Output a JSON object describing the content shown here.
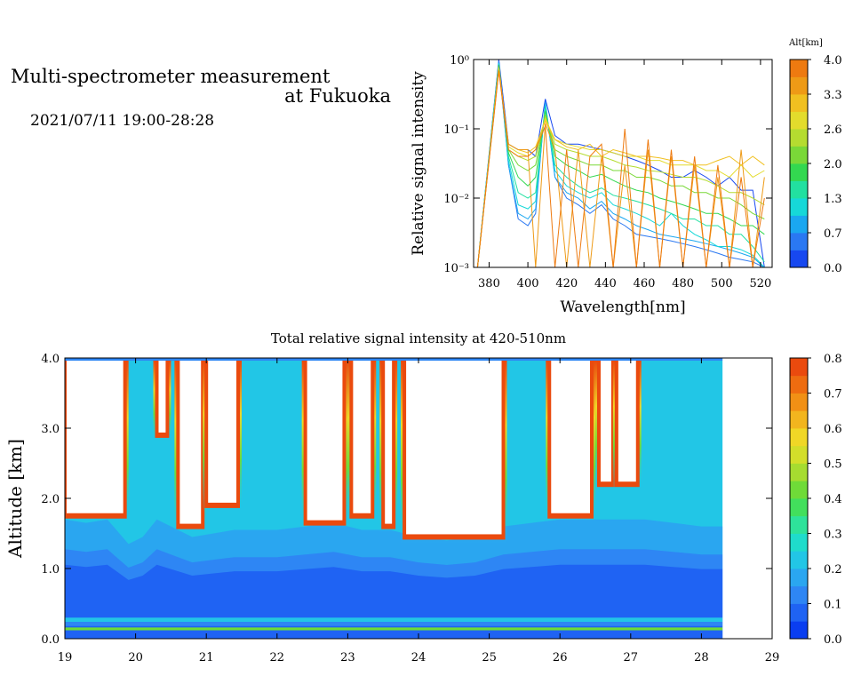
{
  "header": {
    "title_line1": "Multi-spectrometer measurement",
    "title_line2": "at Fukuoka",
    "datetime": "2021/07/11 19:00-28:28"
  },
  "chart_data": [
    {
      "type": "line",
      "xlabel": "Wavelength[nm]",
      "ylabel": "Relative signal intensity",
      "xlim": [
        372,
        526
      ],
      "xticks": [
        380,
        400,
        420,
        440,
        460,
        480,
        500,
        520
      ],
      "ylim": [
        0.001,
        1
      ],
      "yscale": "log",
      "yticks": [
        "10⁰",
        "10⁻¹",
        "10⁻²",
        "10⁻³"
      ],
      "legend": {
        "title": "Alt[km]",
        "ticks": [
          "4.0",
          "3.3",
          "2.6",
          "2.0",
          "1.3",
          "0.7",
          "0.0"
        ],
        "colors": [
          "#1748f0",
          "#2a78f2",
          "#1aa7f0",
          "#16d8d8",
          "#22e0a0",
          "#33d850",
          "#7ad838",
          "#b5dc30",
          "#e3dc2c",
          "#f0c020",
          "#ee9a16",
          "#ee7a10"
        ]
      },
      "x": [
        374,
        385,
        390,
        395,
        400,
        404,
        409,
        414,
        420,
        426,
        432,
        438,
        444,
        450,
        456,
        462,
        468,
        474,
        480,
        486,
        492,
        498,
        504,
        510,
        516,
        522
      ],
      "series": [
        {
          "color": "#1748f0",
          "values": [
            0.001,
            1,
            0.06,
            0.05,
            0.05,
            0.04,
            0.27,
            0.08,
            0.06,
            0.06,
            0.055,
            0.05,
            0.045,
            0.04,
            0.035,
            0.03,
            0.025,
            0.02,
            0.02,
            0.025,
            0.02,
            0.015,
            0.02,
            0.013,
            0.013,
            0.001
          ]
        },
        {
          "color": "#2a78f2",
          "values": [
            0.001,
            0.95,
            0.03,
            0.005,
            0.004,
            0.006,
            0.25,
            0.02,
            0.01,
            0.008,
            0.006,
            0.008,
            0.005,
            0.004,
            0.003,
            0.0028,
            0.0026,
            0.0024,
            0.0022,
            0.002,
            0.0018,
            0.0016,
            0.0014,
            0.0013,
            0.0012,
            0.001
          ]
        },
        {
          "color": "#1aa7f0",
          "values": [
            0.001,
            0.9,
            0.03,
            0.006,
            0.005,
            0.007,
            0.24,
            0.02,
            0.012,
            0.01,
            0.007,
            0.009,
            0.006,
            0.005,
            0.004,
            0.0035,
            0.003,
            0.0028,
            0.0026,
            0.0024,
            0.0022,
            0.002,
            0.0018,
            0.0016,
            0.0014,
            0.001
          ]
        },
        {
          "color": "#16d8d8",
          "values": [
            0.001,
            0.88,
            0.035,
            0.008,
            0.007,
            0.009,
            0.22,
            0.025,
            0.015,
            0.012,
            0.01,
            0.012,
            0.008,
            0.007,
            0.006,
            0.005,
            0.004,
            0.006,
            0.004,
            0.003,
            0.0025,
            0.002,
            0.002,
            0.0018,
            0.0015,
            0.001
          ]
        },
        {
          "color": "#22e0a0",
          "values": [
            0.001,
            0.85,
            0.04,
            0.012,
            0.01,
            0.012,
            0.2,
            0.03,
            0.02,
            0.015,
            0.012,
            0.014,
            0.011,
            0.01,
            0.009,
            0.008,
            0.007,
            0.006,
            0.005,
            0.005,
            0.004,
            0.004,
            0.003,
            0.003,
            0.002,
            0.0012
          ]
        },
        {
          "color": "#33d850",
          "values": [
            0.001,
            0.83,
            0.045,
            0.02,
            0.015,
            0.02,
            0.18,
            0.04,
            0.03,
            0.025,
            0.02,
            0.022,
            0.018,
            0.015,
            0.013,
            0.012,
            0.01,
            0.009,
            0.008,
            0.007,
            0.006,
            0.006,
            0.005,
            0.004,
            0.004,
            0.003
          ]
        },
        {
          "color": "#7ad838",
          "values": [
            0.001,
            0.8,
            0.05,
            0.03,
            0.025,
            0.03,
            0.16,
            0.05,
            0.04,
            0.035,
            0.03,
            0.03,
            0.025,
            0.025,
            0.02,
            0.02,
            0.018,
            0.015,
            0.015,
            0.012,
            0.012,
            0.01,
            0.01,
            0.008,
            0.006,
            0.005
          ]
        },
        {
          "color": "#b5dc30",
          "values": [
            0.001,
            0.78,
            0.05,
            0.04,
            0.035,
            0.04,
            0.15,
            0.06,
            0.05,
            0.045,
            0.04,
            0.04,
            0.035,
            0.03,
            0.028,
            0.025,
            0.024,
            0.022,
            0.02,
            0.02,
            0.018,
            0.015,
            0.012,
            0.012,
            0.01,
            0.008
          ]
        },
        {
          "color": "#e3dc2c",
          "values": [
            0.001,
            0.75,
            0.055,
            0.045,
            0.04,
            0.05,
            0.14,
            0.07,
            0.06,
            0.055,
            0.05,
            0.05,
            0.045,
            0.04,
            0.04,
            0.035,
            0.035,
            0.03,
            0.03,
            0.03,
            0.025,
            0.025,
            0.02,
            0.03,
            0.02,
            0.025
          ]
        },
        {
          "color": "#f0c020",
          "values": [
            0.001,
            0.72,
            0.06,
            0.05,
            0.045,
            0.055,
            0.13,
            0.07,
            0.055,
            0.05,
            0.06,
            0.04,
            0.05,
            0.045,
            0.04,
            0.04,
            0.038,
            0.035,
            0.035,
            0.03,
            0.03,
            0.035,
            0.04,
            0.03,
            0.04,
            0.03
          ]
        },
        {
          "color": "#ee9a16",
          "values": [
            0.001,
            0.7,
            0.06,
            0.05,
            0.05,
            0.001,
            0.12,
            0.05,
            0.001,
            0.05,
            0.001,
            0.04,
            0.001,
            0.03,
            0.001,
            0.05,
            0.001,
            0.04,
            0.001,
            0.03,
            0.001,
            0.02,
            0.001,
            0.05,
            0.001,
            0.02
          ]
        },
        {
          "color": "#ee7a10",
          "values": [
            0.001,
            0.68,
            0.05,
            0.04,
            0.04,
            0.05,
            0.11,
            0.001,
            0.05,
            0.001,
            0.04,
            0.06,
            0.001,
            0.1,
            0.001,
            0.07,
            0.001,
            0.05,
            0.001,
            0.04,
            0.001,
            0.03,
            0.001,
            0.02,
            0.001,
            0.01
          ]
        }
      ]
    },
    {
      "type": "heatmap",
      "title": "Total relative signal intensity at 420-510nm",
      "ylabel": "Altitude [km]",
      "xlim": [
        19,
        29
      ],
      "xticks": [
        "19",
        "20",
        "21",
        "22",
        "23",
        "24",
        "25",
        "26",
        "27",
        "28",
        "29"
      ],
      "ylim": [
        0,
        4
      ],
      "yticks": [
        "0.0",
        "1.0",
        "2.0",
        "3.0",
        "4.0"
      ],
      "x_data_end": 28.3,
      "colorbar": {
        "ticks": [
          "0.8",
          "0.7",
          "0.6",
          "0.5",
          "0.4",
          "0.3",
          "0.2",
          "0.1",
          "0.0"
        ],
        "colors": [
          "#0a3ef0",
          "#1f63f3",
          "#2e86f4",
          "#2aa6f0",
          "#22c6e6",
          "#1fdccb",
          "#2ee29a",
          "#42df5c",
          "#6fdb38",
          "#a6dc30",
          "#d3de2a",
          "#f0d726",
          "#f2b51e",
          "#f19015",
          "#ee6c10",
          "#ea4a0e"
        ]
      },
      "boundary_layer_top_km": [
        [
          19.0,
          1.7
        ],
        [
          19.3,
          1.65
        ],
        [
          19.6,
          1.7
        ],
        [
          19.9,
          1.35
        ],
        [
          20.1,
          1.45
        ],
        [
          20.3,
          1.7
        ],
        [
          20.5,
          1.6
        ],
        [
          20.8,
          1.45
        ],
        [
          21.1,
          1.5
        ],
        [
          21.4,
          1.55
        ],
        [
          21.7,
          1.55
        ],
        [
          22.0,
          1.55
        ],
        [
          22.4,
          1.6
        ],
        [
          22.8,
          1.65
        ],
        [
          23.2,
          1.55
        ],
        [
          23.6,
          1.55
        ],
        [
          24.0,
          1.45
        ],
        [
          24.4,
          1.4
        ],
        [
          24.8,
          1.45
        ],
        [
          25.2,
          1.6
        ],
        [
          25.6,
          1.65
        ],
        [
          26.0,
          1.7
        ],
        [
          26.4,
          1.7
        ],
        [
          26.8,
          1.7
        ],
        [
          27.2,
          1.7
        ],
        [
          27.6,
          1.65
        ],
        [
          28.0,
          1.6
        ],
        [
          28.3,
          1.6
        ]
      ],
      "cloud_regions": [
        {
          "x": [
            19.0,
            19.85
          ],
          "base": 1.75
        },
        {
          "x": [
            20.3,
            20.45
          ],
          "base": 2.9
        },
        {
          "x": [
            20.6,
            20.95
          ],
          "base": 1.6
        },
        {
          "x": [
            21.0,
            21.45
          ],
          "base": 1.9
        },
        {
          "x": [
            22.4,
            22.95
          ],
          "base": 1.65
        },
        {
          "x": [
            23.05,
            23.35
          ],
          "base": 1.75
        },
        {
          "x": [
            23.5,
            23.65
          ],
          "base": 1.6
        },
        {
          "x": [
            23.8,
            25.2
          ],
          "base": 1.45
        },
        {
          "x": [
            25.85,
            26.45
          ],
          "base": 1.75
        },
        {
          "x": [
            26.55,
            26.75
          ],
          "base": 2.2
        },
        {
          "x": [
            26.8,
            27.1
          ],
          "base": 2.2
        }
      ]
    }
  ]
}
